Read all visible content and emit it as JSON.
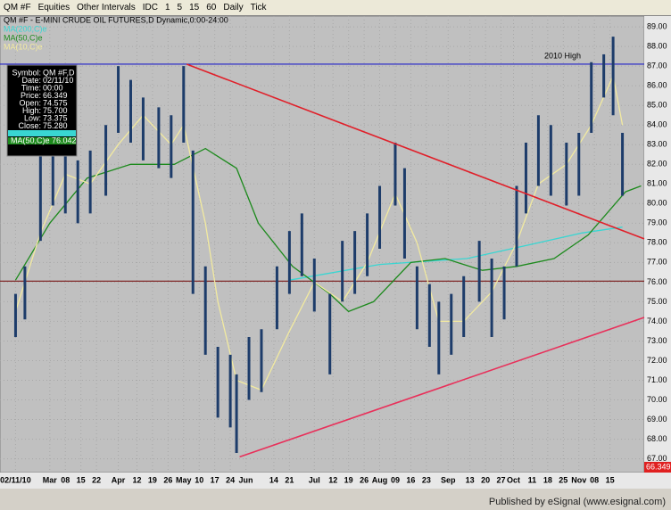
{
  "toolbar": {
    "symbol": "QM #F",
    "items": [
      "Equities",
      "Other Intervals",
      "IDC",
      "1",
      "5",
      "15",
      "60",
      "Daily",
      "Tick"
    ]
  },
  "footer": "Published by eSignal (www.esignal.com)",
  "data_window": {
    "rows": [
      [
        "Symbol:",
        "QM #F,D"
      ],
      [
        "Date:",
        "02/11/10"
      ],
      [
        "Time:",
        "00:00"
      ],
      [
        "Price:",
        "66.349"
      ],
      [
        "Open:",
        "74.575"
      ],
      [
        "High:",
        "75.700"
      ],
      [
        "Low:",
        "73.375"
      ],
      [
        "Close:",
        "75.280"
      ]
    ],
    "ma_rows": [
      "MA(50,C)e",
      "76.042"
    ]
  },
  "chart_data": {
    "type": "ohlc",
    "title": "QM #F - E-MINI CRUDE OIL FUTURES,D Dynamic,0:00-24:00",
    "xlim": [
      -5,
      202
    ],
    "ylim": [
      66.3,
      89.55
    ],
    "xticks": [
      {
        "value": 0,
        "label": "02/11/10"
      },
      {
        "value": 11,
        "label": "Mar"
      },
      {
        "value": 16,
        "label": "08"
      },
      {
        "value": 21,
        "label": "15"
      },
      {
        "value": 26,
        "label": "22"
      },
      {
        "value": 33,
        "label": "Apr"
      },
      {
        "value": 39,
        "label": "12"
      },
      {
        "value": 44,
        "label": "19"
      },
      {
        "value": 49,
        "label": "26"
      },
      {
        "value": 54,
        "label": "May"
      },
      {
        "value": 59,
        "label": "10"
      },
      {
        "value": 64,
        "label": "17"
      },
      {
        "value": 69,
        "label": "24"
      },
      {
        "value": 74,
        "label": "Jun"
      },
      {
        "value": 83,
        "label": "14"
      },
      {
        "value": 88,
        "label": "21"
      },
      {
        "value": 96,
        "label": "Jul"
      },
      {
        "value": 102,
        "label": "12"
      },
      {
        "value": 107,
        "label": "19"
      },
      {
        "value": 112,
        "label": "26"
      },
      {
        "value": 117,
        "label": "Aug"
      },
      {
        "value": 122,
        "label": "09"
      },
      {
        "value": 127,
        "label": "16"
      },
      {
        "value": 132,
        "label": "23"
      },
      {
        "value": 139,
        "label": "Sep"
      },
      {
        "value": 146,
        "label": "13"
      },
      {
        "value": 151,
        "label": "20"
      },
      {
        "value": 156,
        "label": "27"
      },
      {
        "value": 160,
        "label": "Oct"
      },
      {
        "value": 166,
        "label": "11"
      },
      {
        "value": 171,
        "label": "18"
      },
      {
        "value": 176,
        "label": "25"
      },
      {
        "value": 181,
        "label": "Nov"
      },
      {
        "value": 186,
        "label": "08"
      },
      {
        "value": 191,
        "label": "15"
      }
    ],
    "yticks": [
      {
        "value": 67,
        "label": "67.00"
      },
      {
        "value": 68,
        "label": "68.00"
      },
      {
        "value": 69,
        "label": "69.00"
      },
      {
        "value": 70,
        "label": "70.00"
      },
      {
        "value": 71,
        "label": "71.00"
      },
      {
        "value": 72,
        "label": "72.00"
      },
      {
        "value": 73,
        "label": "73.00"
      },
      {
        "value": 74,
        "label": "74.00"
      },
      {
        "value": 75,
        "label": "75.00"
      },
      {
        "value": 76,
        "label": "76.00"
      },
      {
        "value": 77,
        "label": "77.00"
      },
      {
        "value": 78,
        "label": "78.00"
      },
      {
        "value": 79,
        "label": "79.00"
      },
      {
        "value": 80,
        "label": "80.00"
      },
      {
        "value": 81,
        "label": "81.00"
      },
      {
        "value": 82,
        "label": "82.00"
      },
      {
        "value": 83,
        "label": "83.00"
      },
      {
        "value": 84,
        "label": "84.00"
      },
      {
        "value": 85,
        "label": "85.00"
      },
      {
        "value": 86,
        "label": "86.00"
      },
      {
        "value": 87,
        "label": "87.00"
      },
      {
        "value": 88,
        "label": "88.00"
      },
      {
        "value": 89,
        "label": "89.00"
      }
    ],
    "grid": true,
    "series": [
      {
        "name": "QM #F",
        "color": "#1d3c6a",
        "x": [
          0,
          3,
          8,
          12,
          16,
          20,
          24,
          29,
          33,
          37,
          41,
          46,
          50,
          54,
          57,
          61,
          65,
          69,
          71,
          75,
          79,
          84,
          88,
          92,
          96,
          101,
          105,
          109,
          113,
          117,
          122,
          125,
          129,
          133,
          136,
          140,
          144,
          149,
          153,
          157,
          161,
          164,
          168,
          172,
          177,
          181,
          185,
          189,
          192,
          195
        ],
        "high": [
          75.4,
          76.8,
          82.7,
          83.6,
          83.1,
          82.2,
          82.7,
          84,
          87,
          86.3,
          85.4,
          84.9,
          84.5,
          87,
          82.7,
          76.8,
          72.7,
          72.3,
          71.3,
          73.2,
          73.6,
          76.8,
          78.6,
          79.5,
          77.2,
          75.4,
          78.1,
          78.6,
          79.5,
          80.9,
          83.1,
          81.8,
          76.8,
          75.9,
          75,
          75.4,
          76.3,
          78.1,
          77.2,
          76.8,
          80.9,
          83.1,
          84.5,
          84,
          83.1,
          83.6,
          87.2,
          87.6,
          88.5,
          83.6
        ],
        "low": [
          73.2,
          74.1,
          78.1,
          79.9,
          79.5,
          79,
          79.5,
          80.4,
          83.6,
          83.1,
          82.2,
          81.8,
          81.3,
          83.1,
          75.4,
          72.3,
          69.1,
          68.6,
          67.3,
          70,
          70.4,
          73.6,
          75.4,
          76.3,
          74.5,
          71.3,
          75,
          75.4,
          76.3,
          77.7,
          79.9,
          77.2,
          73.6,
          72.7,
          71.3,
          72.3,
          73.2,
          75,
          73.2,
          74.1,
          76.8,
          79.5,
          80.9,
          80.4,
          79.9,
          80.4,
          83.6,
          85.4,
          84.5,
          80.4
        ]
      }
    ],
    "indicators": [
      {
        "name": "MA(200,C)e",
        "color": "#39d6d2",
        "x": [
          88,
          117,
          145,
          165,
          182,
          195
        ],
        "values": [
          76.1,
          76.9,
          77.2,
          77.9,
          78.5,
          78.8
        ]
      },
      {
        "name": "MA(50,C)e",
        "color": "#1d8a1d",
        "x": [
          0,
          11,
          23,
          37,
          51,
          61,
          71,
          78,
          89,
          101,
          107,
          115,
          127,
          138,
          150,
          161,
          173,
          184,
          196,
          201
        ],
        "values": [
          76.1,
          79,
          81.3,
          82,
          82,
          82.8,
          81.8,
          79,
          76.8,
          75.4,
          74.5,
          75,
          77,
          77.2,
          76.6,
          76.8,
          77.2,
          78.4,
          80.6,
          80.9
        ]
      },
      {
        "name": "MA(10,C)e",
        "color": "#f2eaa0",
        "x": [
          0,
          8,
          16,
          24,
          33,
          41,
          50,
          54,
          61,
          65,
          71,
          79,
          88,
          96,
          105,
          113,
          122,
          129,
          136,
          144,
          153,
          161,
          168,
          177,
          185,
          192,
          195
        ],
        "values": [
          74.5,
          78.5,
          81.5,
          81,
          83,
          84.5,
          83,
          84,
          79,
          75,
          71,
          70.5,
          73.5,
          76,
          75,
          77,
          80.5,
          78,
          74,
          74,
          75.5,
          78,
          81,
          82,
          84,
          86.5,
          84
        ]
      }
    ],
    "lines": [
      {
        "color": "#e0202a",
        "x": [
          55,
          202
        ],
        "values": [
          87.1,
          78.2
        ]
      },
      {
        "color": "#e8305a",
        "x": [
          72,
          202
        ],
        "values": [
          67.1,
          74.2
        ]
      }
    ],
    "hlines": [
      {
        "value": 87.1,
        "color": "#2020c8",
        "label": "2010 High"
      },
      {
        "value": 76.05,
        "color": "#7a1a1a"
      }
    ],
    "last_price": {
      "value": 66.349,
      "color": "#e02020"
    }
  }
}
